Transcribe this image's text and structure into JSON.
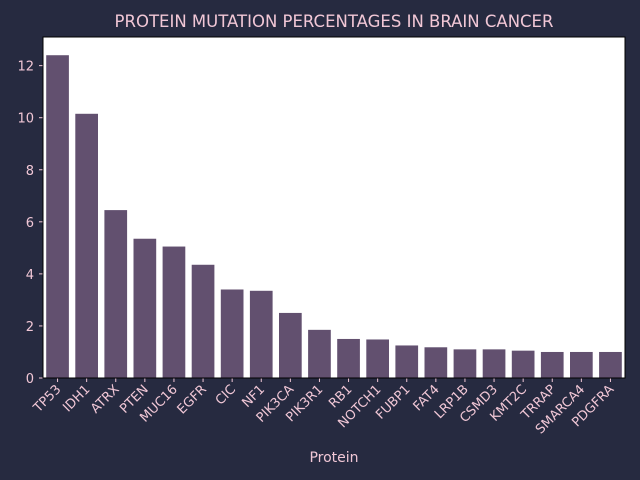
{
  "chart_data": {
    "type": "bar",
    "title": "PROTEIN MUTATION PERCENTAGES IN BRAIN CANCER",
    "xlabel": "Protein",
    "ylabel": "",
    "categories": [
      "TP53",
      "IDH1",
      "ATRX",
      "PTEN",
      "MUC16",
      "EGFR",
      "CIC",
      "NF1",
      "PIK3CA",
      "PIK3R1",
      "RB1",
      "NOTCH1",
      "FUBP1",
      "FAT4",
      "LRP1B",
      "CSMD3",
      "KMT2C",
      "TRRAP",
      "SMARCA4",
      "PDGFRA"
    ],
    "values": [
      12.4,
      10.15,
      6.45,
      5.35,
      5.05,
      4.35,
      3.4,
      3.35,
      2.5,
      1.85,
      1.5,
      1.48,
      1.25,
      1.18,
      1.1,
      1.1,
      1.05,
      1.0,
      1.0,
      1.0
    ],
    "ylim": [
      0,
      13.1
    ],
    "yticks": [
      0,
      2,
      4,
      6,
      8,
      10,
      12
    ],
    "grid": false,
    "colors": {
      "background": "#262a40",
      "plot_area": "#ffffff",
      "bar": "#62506f",
      "text": "#f1c7d6",
      "axis": "#000000"
    }
  }
}
